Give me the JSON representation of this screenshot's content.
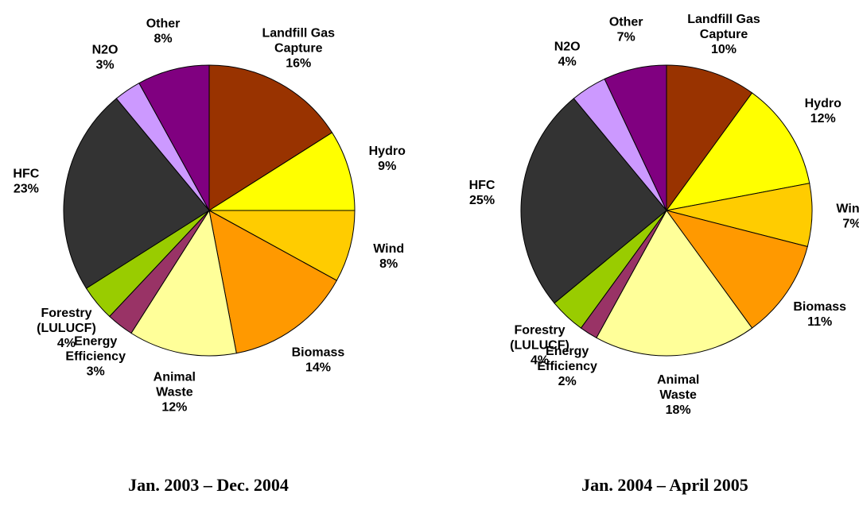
{
  "chart_data": [
    {
      "type": "pie",
      "title": "Jan. 2003 – Dec. 2004",
      "categories": [
        "Landfill Gas Capture",
        "Hydro",
        "Wind",
        "Biomass",
        "Animal Waste",
        "Energy Efficiency",
        "Forestry (LULUCF)",
        "HFC",
        "N2O",
        "Other"
      ],
      "values": [
        16,
        9,
        8,
        14,
        12,
        3,
        4,
        23,
        3,
        8
      ],
      "value_labels": [
        "16%",
        "9%",
        "8%",
        "14%",
        "12%",
        "3%",
        "4%",
        "23%",
        "3%",
        "8%"
      ],
      "colors": [
        "#993300",
        "#ffff00",
        "#ffcc00",
        "#ff9900",
        "#ffff99",
        "#993366",
        "#99cc00",
        "#333333",
        "#cc99ff",
        "#800080"
      ]
    },
    {
      "type": "pie",
      "title": "Jan. 2004 – April 2005",
      "categories": [
        "Landfill Gas Capture",
        "Hydro",
        "Wind",
        "Biomass",
        "Animal Waste",
        "Energy Efficiency",
        "Forestry (LULUCF)",
        "HFC",
        "N2O",
        "Other"
      ],
      "values": [
        10,
        12,
        7,
        11,
        18,
        2,
        4,
        25,
        4,
        7
      ],
      "value_labels": [
        "10%",
        "12%",
        "7%",
        "11%",
        "18%",
        "2%",
        "4%",
        "25%",
        "4%",
        "7%"
      ],
      "colors": [
        "#993300",
        "#ffff00",
        "#ffcc00",
        "#ff9900",
        "#ffff99",
        "#993366",
        "#99cc00",
        "#333333",
        "#cc99ff",
        "#800080"
      ]
    }
  ]
}
